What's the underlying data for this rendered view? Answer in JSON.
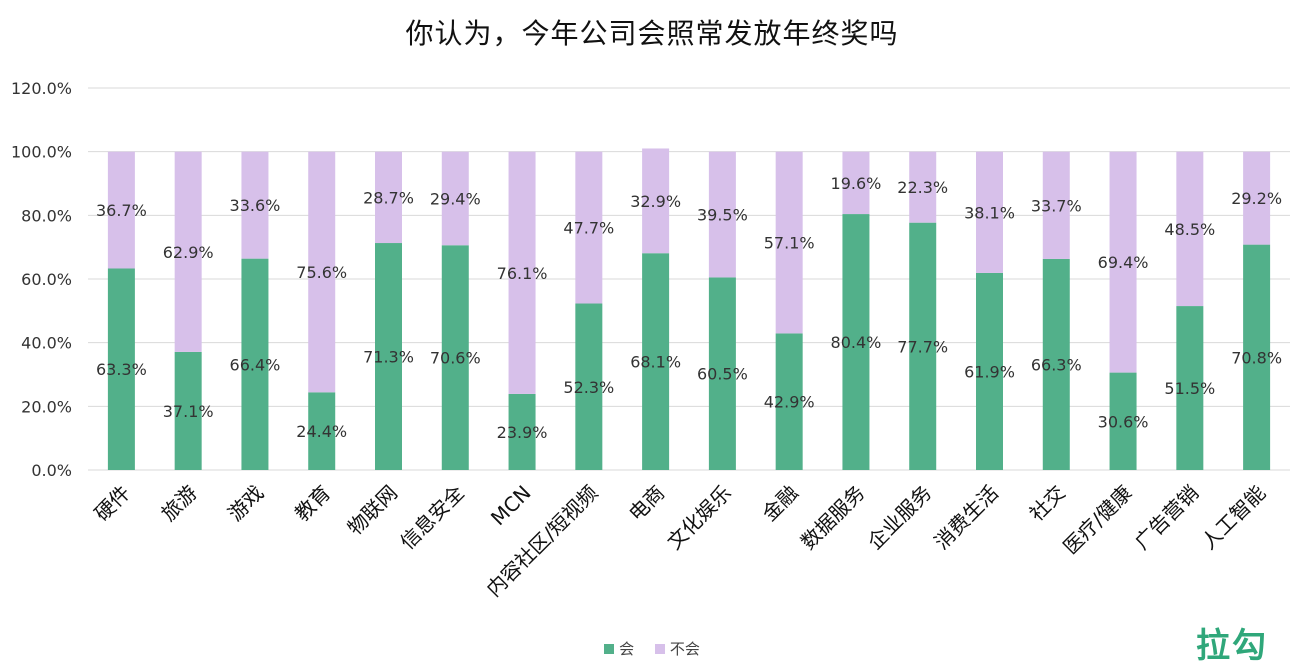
{
  "colors": {
    "will": "#52b08a",
    "wont": "#d7c0ea",
    "grid": "#d9d9d9",
    "brand": "#2fa77a"
  },
  "brand_text": "拉勾",
  "chart_data": {
    "type": "bar",
    "stacked": true,
    "title": "你认为，今年公司会照常发放年终奖吗",
    "xlabel": "",
    "ylabel": "",
    "ylim": [
      0,
      120
    ],
    "yticks": [
      0,
      20,
      40,
      60,
      80,
      100,
      120
    ],
    "ytick_labels": [
      "0.0%",
      "20.0%",
      "40.0%",
      "60.0%",
      "80.0%",
      "100.0%",
      "120.0%"
    ],
    "grid": true,
    "legend_position": "bottom",
    "categories": [
      "硬件",
      "旅游",
      "游戏",
      "教育",
      "物联网",
      "信息安全",
      "MCN",
      "内容社区/短视频",
      "电商",
      "文化娱乐",
      "金融",
      "数据服务",
      "企业服务",
      "消费生活",
      "社交",
      "医疗/健康",
      "广告营销",
      "人工智能"
    ],
    "series": [
      {
        "name": "会",
        "values": [
          63.3,
          37.1,
          66.4,
          24.4,
          71.3,
          70.6,
          23.9,
          52.3,
          68.1,
          60.5,
          42.9,
          80.4,
          77.7,
          61.9,
          66.3,
          30.6,
          51.5,
          70.8
        ],
        "labels": [
          "63.3%",
          "37.1%",
          "66.4%",
          "24.4%",
          "71.3%",
          "70.6%",
          "23.9%",
          "52.3%",
          "68.1%",
          "60.5%",
          "42.9%",
          "80.4%",
          "77.7%",
          "61.9%",
          "66.3%",
          "30.6%",
          "51.5%",
          "70.8%"
        ]
      },
      {
        "name": "不会",
        "values": [
          36.7,
          62.9,
          33.6,
          75.6,
          28.7,
          29.4,
          76.1,
          47.7,
          32.9,
          39.5,
          57.1,
          19.6,
          22.3,
          38.1,
          33.7,
          69.4,
          48.5,
          29.2
        ],
        "labels": [
          "36.7%",
          "62.9%",
          "33.6%",
          "75.6%",
          "28.7%",
          "29.4%",
          "76.1%",
          "47.7%",
          "32.9%",
          "39.5%",
          "57.1%",
          "19.6%",
          "22.3%",
          "38.1%",
          "33.7%",
          "69.4%",
          "48.5%",
          "29.2%"
        ]
      }
    ]
  }
}
